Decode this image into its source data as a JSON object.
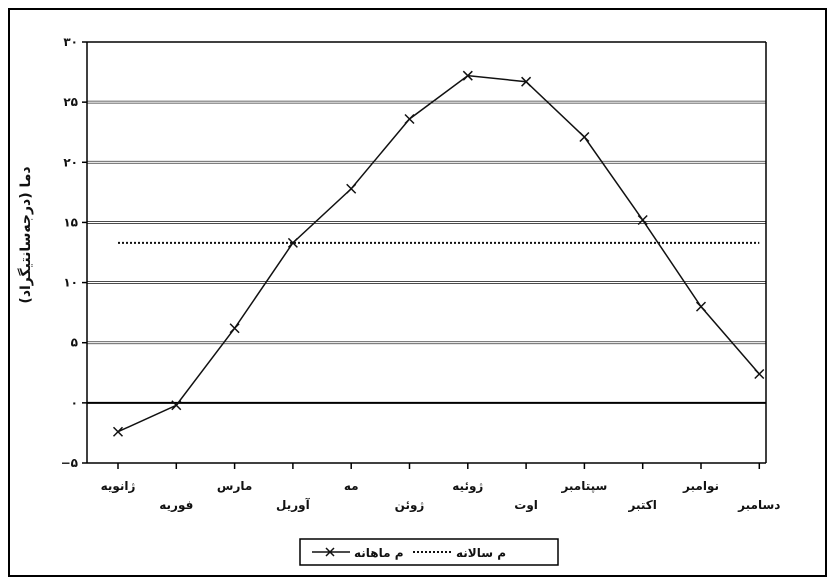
{
  "chart_data": {
    "type": "line",
    "categories": [
      "ژانویه",
      "فوریه",
      "مارس",
      "آوریل",
      "مه",
      "ژوئن",
      "ژوئیه",
      "اوت",
      "سپتامبر",
      "اکتبر",
      "نوامبر",
      "دسامبر"
    ],
    "series": [
      {
        "name": "م ماهانه",
        "values": [
          -2.4,
          -0.2,
          6.2,
          13.3,
          17.8,
          23.6,
          27.2,
          26.7,
          22.1,
          15.2,
          8.0,
          2.4
        ],
        "style": "solid",
        "marker": "x",
        "color": "#111111"
      },
      {
        "name": "م سالانه",
        "values": [
          13.3,
          13.3,
          13.3,
          13.3,
          13.3,
          13.3,
          13.3,
          13.3,
          13.3,
          13.3,
          13.3,
          13.3
        ],
        "style": "dotted",
        "color": "#111111"
      }
    ],
    "ylabel": "دما (درجه‌سانتیگراد)",
    "ylim": [
      -5,
      30
    ],
    "yticks": [
      -5,
      0,
      5,
      10,
      15,
      20,
      25,
      30
    ],
    "ytick_labels": [
      "−۵",
      "۰",
      "۵",
      "۱۰",
      "۱۵",
      "۲۰",
      "۲۵",
      "۳۰"
    ],
    "grid": "horizontal",
    "legend_position": "bottom-center"
  }
}
